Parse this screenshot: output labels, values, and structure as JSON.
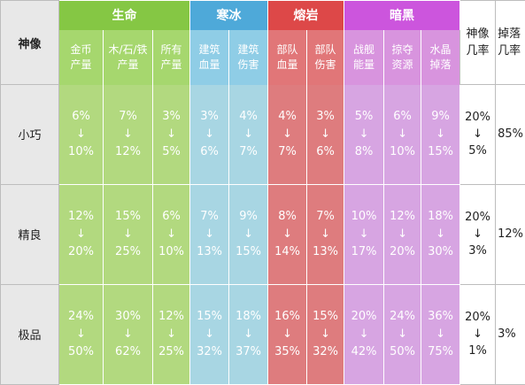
{
  "headers": {
    "corner": "神像",
    "rate": "神像\n几率",
    "drop": "掉落\n几率"
  },
  "groups": [
    {
      "label": "生命",
      "cols": [
        {
          "label": "金币\n产量"
        },
        {
          "label": "木/石/铁\n产量"
        },
        {
          "label": "所有\n产量"
        }
      ]
    },
    {
      "label": "寒冰",
      "cols": [
        {
          "label": "建筑\n血量"
        },
        {
          "label": "建筑\n伤害"
        }
      ]
    },
    {
      "label": "熔岩",
      "cols": [
        {
          "label": "部队\n血量"
        },
        {
          "label": "部队\n伤害"
        }
      ]
    },
    {
      "label": "暗黑",
      "cols": [
        {
          "label": "战舰\n能量"
        },
        {
          "label": "掠夺\n资源"
        },
        {
          "label": "水晶\n掉落"
        }
      ]
    }
  ],
  "arrow": "↓",
  "rows": [
    {
      "name": "小巧",
      "values": [
        {
          "from": "6%",
          "to": "10%"
        },
        {
          "from": "7%",
          "to": "12%"
        },
        {
          "from": "3%",
          "to": "5%"
        },
        {
          "from": "3%",
          "to": "6%"
        },
        {
          "from": "4%",
          "to": "7%"
        },
        {
          "from": "4%",
          "to": "7%"
        },
        {
          "from": "3%",
          "to": "6%"
        },
        {
          "from": "5%",
          "to": "8%"
        },
        {
          "from": "6%",
          "to": "10%"
        },
        {
          "from": "9%",
          "to": "15%"
        }
      ],
      "rate": {
        "from": "20%",
        "to": "5%"
      },
      "drop": "85%"
    },
    {
      "name": "精良",
      "values": [
        {
          "from": "12%",
          "to": "20%"
        },
        {
          "from": "15%",
          "to": "25%"
        },
        {
          "from": "6%",
          "to": "10%"
        },
        {
          "from": "7%",
          "to": "13%"
        },
        {
          "from": "9%",
          "to": "15%"
        },
        {
          "from": "8%",
          "to": "14%"
        },
        {
          "from": "7%",
          "to": "13%"
        },
        {
          "from": "10%",
          "to": "17%"
        },
        {
          "from": "12%",
          "to": "20%"
        },
        {
          "from": "18%",
          "to": "30%"
        }
      ],
      "rate": {
        "from": "20%",
        "to": "3%"
      },
      "drop": "12%"
    },
    {
      "name": "极品",
      "values": [
        {
          "from": "24%",
          "to": "50%"
        },
        {
          "from": "30%",
          "to": "62%"
        },
        {
          "from": "12%",
          "to": "25%"
        },
        {
          "from": "15%",
          "to": "32%"
        },
        {
          "from": "18%",
          "to": "37%"
        },
        {
          "from": "16%",
          "to": "35%"
        },
        {
          "from": "15%",
          "to": "32%"
        },
        {
          "from": "20%",
          "to": "42%"
        },
        {
          "from": "24%",
          "to": "50%"
        },
        {
          "from": "36%",
          "to": "75%"
        }
      ],
      "rate": {
        "from": "20%",
        "to": "1%"
      },
      "drop": "3%"
    }
  ],
  "colors": {
    "life": "#85c744",
    "ice": "#4ea9d9",
    "lava": "#dd4848",
    "dark": "#cc55dd"
  }
}
